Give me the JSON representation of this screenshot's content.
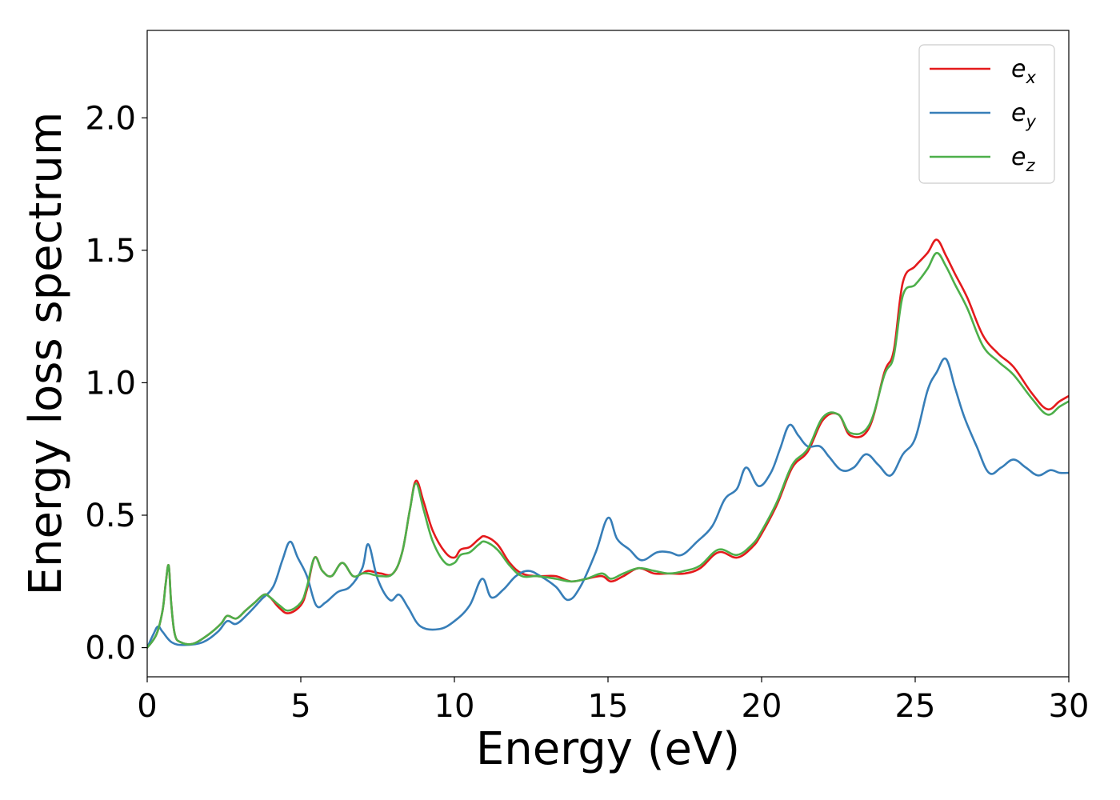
{
  "chart_data": {
    "type": "line",
    "title": "",
    "xlabel": "Energy (eV)",
    "ylabel": "Energy loss spectrum",
    "xlim": [
      0,
      30
    ],
    "ylim": [
      -0.11,
      2.33
    ],
    "grid": false,
    "legend_position": "top-right",
    "x_ticks": [
      0,
      5,
      10,
      15,
      20,
      25,
      30
    ],
    "x_tick_labels": [
      "0",
      "5",
      "10",
      "15",
      "20",
      "25",
      "30"
    ],
    "y_ticks": [
      0.0,
      0.5,
      1.0,
      1.5,
      2.0
    ],
    "y_tick_labels": [
      "0.0",
      "0.5",
      "1.0",
      "1.5",
      "2.0"
    ],
    "series": [
      {
        "name": "e_x",
        "legend_base": "e",
        "legend_sub": "x",
        "color": "#e41a1c",
        "points": [
          [
            0,
            0
          ],
          [
            0.3,
            0.05
          ],
          [
            0.5,
            0.14
          ],
          [
            0.6,
            0.24
          ],
          [
            0.7,
            0.31
          ],
          [
            0.78,
            0.17
          ],
          [
            0.9,
            0.05
          ],
          [
            1.1,
            0.02
          ],
          [
            1.5,
            0.015
          ],
          [
            2.0,
            0.05
          ],
          [
            2.4,
            0.09
          ],
          [
            2.6,
            0.12
          ],
          [
            2.9,
            0.11
          ],
          [
            3.2,
            0.14
          ],
          [
            3.5,
            0.17
          ],
          [
            3.8,
            0.2
          ],
          [
            4.0,
            0.19
          ],
          [
            4.3,
            0.15
          ],
          [
            4.6,
            0.13
          ],
          [
            5.0,
            0.16
          ],
          [
            5.2,
            0.22
          ],
          [
            5.45,
            0.34
          ],
          [
            5.7,
            0.29
          ],
          [
            6.0,
            0.27
          ],
          [
            6.35,
            0.32
          ],
          [
            6.7,
            0.27
          ],
          [
            7.0,
            0.28
          ],
          [
            7.2,
            0.29
          ],
          [
            7.6,
            0.28
          ],
          [
            8.0,
            0.28
          ],
          [
            8.3,
            0.36
          ],
          [
            8.55,
            0.52
          ],
          [
            8.75,
            0.63
          ],
          [
            9.0,
            0.55
          ],
          [
            9.3,
            0.44
          ],
          [
            9.7,
            0.36
          ],
          [
            10.0,
            0.34
          ],
          [
            10.2,
            0.37
          ],
          [
            10.5,
            0.38
          ],
          [
            10.8,
            0.41
          ],
          [
            11.0,
            0.42
          ],
          [
            11.4,
            0.39
          ],
          [
            11.8,
            0.32
          ],
          [
            12.2,
            0.28
          ],
          [
            12.7,
            0.27
          ],
          [
            13.3,
            0.27
          ],
          [
            13.8,
            0.25
          ],
          [
            14.3,
            0.26
          ],
          [
            14.8,
            0.27
          ],
          [
            15.1,
            0.25
          ],
          [
            15.5,
            0.27
          ],
          [
            16.0,
            0.3
          ],
          [
            16.5,
            0.28
          ],
          [
            17.0,
            0.28
          ],
          [
            17.5,
            0.28
          ],
          [
            18.0,
            0.3
          ],
          [
            18.6,
            0.36
          ],
          [
            19.2,
            0.34
          ],
          [
            19.7,
            0.38
          ],
          [
            20.0,
            0.43
          ],
          [
            20.5,
            0.54
          ],
          [
            21.0,
            0.68
          ],
          [
            21.5,
            0.74
          ],
          [
            22.0,
            0.86
          ],
          [
            22.5,
            0.88
          ],
          [
            22.9,
            0.8
          ],
          [
            23.5,
            0.83
          ],
          [
            24.0,
            1.04
          ],
          [
            24.3,
            1.12
          ],
          [
            24.6,
            1.38
          ],
          [
            25.0,
            1.44
          ],
          [
            25.4,
            1.49
          ],
          [
            25.7,
            1.54
          ],
          [
            26.0,
            1.48
          ],
          [
            26.3,
            1.41
          ],
          [
            26.7,
            1.32
          ],
          [
            27.2,
            1.18
          ],
          [
            27.7,
            1.11
          ],
          [
            28.2,
            1.06
          ],
          [
            28.8,
            0.96
          ],
          [
            29.3,
            0.9
          ],
          [
            29.7,
            0.93
          ],
          [
            30.0,
            0.95
          ]
        ]
      },
      {
        "name": "e_y",
        "legend_base": "e",
        "legend_sub": "y",
        "color": "#377eb8",
        "points": [
          [
            0,
            0
          ],
          [
            0.2,
            0.05
          ],
          [
            0.35,
            0.08
          ],
          [
            0.5,
            0.06
          ],
          [
            0.8,
            0.02
          ],
          [
            1.2,
            0.01
          ],
          [
            1.8,
            0.02
          ],
          [
            2.3,
            0.06
          ],
          [
            2.6,
            0.1
          ],
          [
            2.9,
            0.09
          ],
          [
            3.3,
            0.13
          ],
          [
            3.7,
            0.18
          ],
          [
            4.1,
            0.23
          ],
          [
            4.4,
            0.33
          ],
          [
            4.65,
            0.4
          ],
          [
            4.9,
            0.34
          ],
          [
            5.2,
            0.27
          ],
          [
            5.5,
            0.16
          ],
          [
            5.8,
            0.17
          ],
          [
            6.2,
            0.21
          ],
          [
            6.6,
            0.23
          ],
          [
            7.0,
            0.3
          ],
          [
            7.2,
            0.39
          ],
          [
            7.5,
            0.26
          ],
          [
            7.9,
            0.18
          ],
          [
            8.2,
            0.2
          ],
          [
            8.5,
            0.15
          ],
          [
            8.9,
            0.08
          ],
          [
            9.5,
            0.07
          ],
          [
            10.0,
            0.1
          ],
          [
            10.5,
            0.16
          ],
          [
            10.9,
            0.26
          ],
          [
            11.2,
            0.19
          ],
          [
            11.6,
            0.22
          ],
          [
            12.0,
            0.27
          ],
          [
            12.4,
            0.29
          ],
          [
            12.8,
            0.27
          ],
          [
            13.3,
            0.23
          ],
          [
            13.7,
            0.18
          ],
          [
            14.1,
            0.23
          ],
          [
            14.6,
            0.36
          ],
          [
            15.0,
            0.49
          ],
          [
            15.3,
            0.41
          ],
          [
            15.7,
            0.37
          ],
          [
            16.1,
            0.33
          ],
          [
            16.6,
            0.36
          ],
          [
            17.0,
            0.36
          ],
          [
            17.4,
            0.35
          ],
          [
            17.9,
            0.4
          ],
          [
            18.4,
            0.46
          ],
          [
            18.8,
            0.56
          ],
          [
            19.2,
            0.6
          ],
          [
            19.5,
            0.68
          ],
          [
            19.9,
            0.61
          ],
          [
            20.3,
            0.66
          ],
          [
            20.6,
            0.75
          ],
          [
            20.9,
            0.84
          ],
          [
            21.2,
            0.8
          ],
          [
            21.5,
            0.76
          ],
          [
            21.9,
            0.76
          ],
          [
            22.2,
            0.72
          ],
          [
            22.6,
            0.67
          ],
          [
            23.0,
            0.68
          ],
          [
            23.4,
            0.73
          ],
          [
            23.8,
            0.69
          ],
          [
            24.2,
            0.65
          ],
          [
            24.6,
            0.73
          ],
          [
            25.0,
            0.79
          ],
          [
            25.4,
            0.97
          ],
          [
            25.7,
            1.04
          ],
          [
            26.0,
            1.09
          ],
          [
            26.3,
            0.98
          ],
          [
            26.6,
            0.87
          ],
          [
            27.0,
            0.76
          ],
          [
            27.4,
            0.66
          ],
          [
            27.8,
            0.68
          ],
          [
            28.2,
            0.71
          ],
          [
            28.6,
            0.68
          ],
          [
            29.0,
            0.65
          ],
          [
            29.4,
            0.67
          ],
          [
            29.7,
            0.66
          ],
          [
            30.0,
            0.66
          ]
        ]
      },
      {
        "name": "e_z",
        "legend_base": "e",
        "legend_sub": "z",
        "color": "#4daf4a",
        "points": [
          [
            0,
            0
          ],
          [
            0.3,
            0.05
          ],
          [
            0.5,
            0.14
          ],
          [
            0.6,
            0.24
          ],
          [
            0.7,
            0.31
          ],
          [
            0.78,
            0.17
          ],
          [
            0.9,
            0.05
          ],
          [
            1.1,
            0.02
          ],
          [
            1.5,
            0.015
          ],
          [
            2.0,
            0.05
          ],
          [
            2.4,
            0.09
          ],
          [
            2.6,
            0.12
          ],
          [
            2.9,
            0.11
          ],
          [
            3.2,
            0.14
          ],
          [
            3.5,
            0.17
          ],
          [
            3.8,
            0.2
          ],
          [
            4.0,
            0.19
          ],
          [
            4.3,
            0.16
          ],
          [
            4.6,
            0.14
          ],
          [
            5.0,
            0.17
          ],
          [
            5.2,
            0.23
          ],
          [
            5.45,
            0.34
          ],
          [
            5.7,
            0.29
          ],
          [
            6.0,
            0.27
          ],
          [
            6.35,
            0.32
          ],
          [
            6.7,
            0.27
          ],
          [
            7.0,
            0.28
          ],
          [
            7.2,
            0.28
          ],
          [
            7.6,
            0.27
          ],
          [
            8.0,
            0.28
          ],
          [
            8.3,
            0.36
          ],
          [
            8.55,
            0.52
          ],
          [
            8.75,
            0.62
          ],
          [
            9.0,
            0.52
          ],
          [
            9.3,
            0.4
          ],
          [
            9.7,
            0.32
          ],
          [
            10.0,
            0.32
          ],
          [
            10.2,
            0.35
          ],
          [
            10.5,
            0.36
          ],
          [
            10.8,
            0.39
          ],
          [
            11.0,
            0.4
          ],
          [
            11.4,
            0.37
          ],
          [
            11.8,
            0.31
          ],
          [
            12.2,
            0.27
          ],
          [
            12.7,
            0.27
          ],
          [
            13.3,
            0.26
          ],
          [
            13.8,
            0.25
          ],
          [
            14.3,
            0.26
          ],
          [
            14.8,
            0.28
          ],
          [
            15.1,
            0.26
          ],
          [
            15.5,
            0.28
          ],
          [
            16.0,
            0.3
          ],
          [
            16.5,
            0.29
          ],
          [
            17.0,
            0.28
          ],
          [
            17.5,
            0.29
          ],
          [
            18.0,
            0.31
          ],
          [
            18.6,
            0.37
          ],
          [
            19.2,
            0.35
          ],
          [
            19.7,
            0.39
          ],
          [
            20.0,
            0.44
          ],
          [
            20.5,
            0.55
          ],
          [
            21.0,
            0.69
          ],
          [
            21.5,
            0.75
          ],
          [
            22.0,
            0.87
          ],
          [
            22.5,
            0.88
          ],
          [
            22.9,
            0.81
          ],
          [
            23.5,
            0.84
          ],
          [
            24.0,
            1.03
          ],
          [
            24.3,
            1.1
          ],
          [
            24.6,
            1.33
          ],
          [
            25.0,
            1.37
          ],
          [
            25.4,
            1.43
          ],
          [
            25.7,
            1.49
          ],
          [
            26.0,
            1.44
          ],
          [
            26.3,
            1.37
          ],
          [
            26.7,
            1.28
          ],
          [
            27.2,
            1.14
          ],
          [
            27.7,
            1.08
          ],
          [
            28.2,
            1.03
          ],
          [
            28.8,
            0.94
          ],
          [
            29.3,
            0.88
          ],
          [
            29.7,
            0.91
          ],
          [
            30.0,
            0.93
          ]
        ]
      }
    ]
  }
}
